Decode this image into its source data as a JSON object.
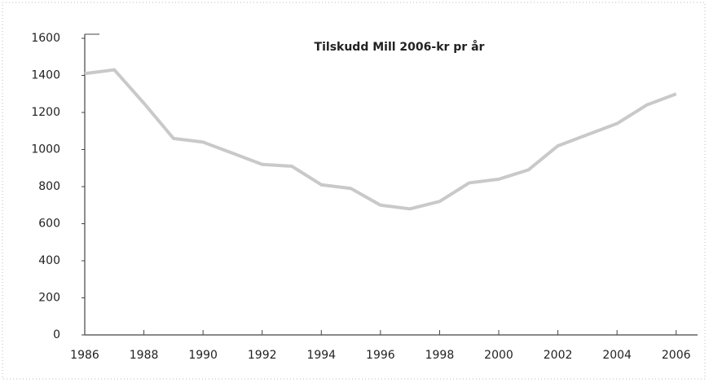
{
  "chart_data": {
    "type": "line",
    "title": "Tilskudd Mill 2006-kr pr år",
    "x": [
      1986,
      1987,
      1988,
      1989,
      1990,
      1991,
      1992,
      1993,
      1994,
      1995,
      1996,
      1997,
      1998,
      1999,
      2000,
      2001,
      2002,
      2003,
      2004,
      2005,
      2006
    ],
    "series": [
      {
        "name": "Tilskudd",
        "color": "#c9c9c9",
        "values": [
          1410,
          1430,
          1250,
          1060,
          1040,
          980,
          920,
          910,
          810,
          790,
          700,
          680,
          720,
          820,
          840,
          890,
          1020,
          1080,
          1140,
          1240,
          1300
        ]
      }
    ],
    "xlim": [
      1986,
      2007
    ],
    "xticks": [
      1986,
      1988,
      1990,
      1992,
      1994,
      1996,
      1998,
      2000,
      2002,
      2004,
      2006
    ],
    "ylim": [
      0,
      1600
    ],
    "yticks": [
      0,
      200,
      400,
      600,
      800,
      1000,
      1200,
      1400,
      1600
    ]
  }
}
